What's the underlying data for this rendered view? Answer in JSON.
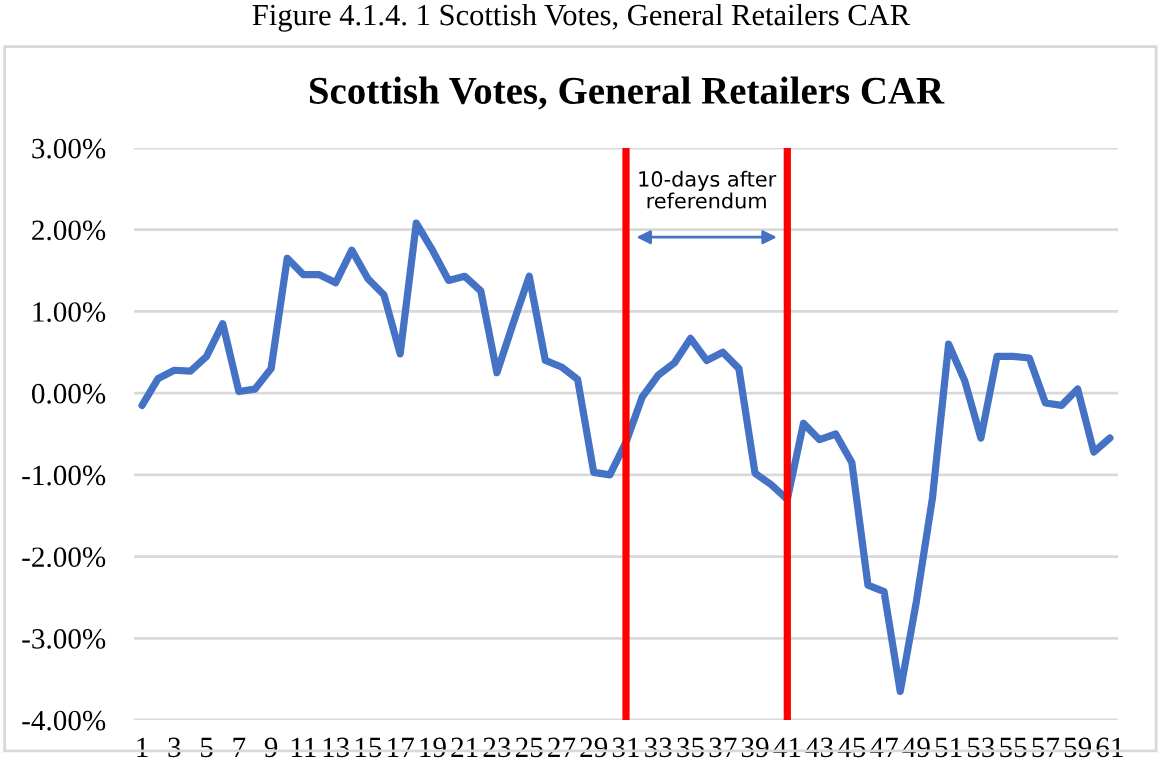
{
  "chart_data": {
    "type": "line",
    "title": "Scottish Votes, General Retailers CAR",
    "x": [
      1,
      2,
      3,
      4,
      5,
      6,
      7,
      8,
      9,
      10,
      11,
      12,
      13,
      14,
      15,
      16,
      17,
      18,
      19,
      20,
      21,
      22,
      23,
      24,
      25,
      26,
      27,
      28,
      29,
      30,
      31,
      32,
      33,
      34,
      35,
      36,
      37,
      38,
      39,
      40,
      41,
      42,
      43,
      44,
      45,
      46,
      47,
      48,
      49,
      50,
      51,
      52,
      53,
      54,
      55,
      56,
      57,
      58,
      59,
      60,
      61
    ],
    "xlim": [
      0.5,
      61.5
    ],
    "xticks": [
      1,
      3,
      5,
      7,
      9,
      11,
      13,
      15,
      17,
      19,
      21,
      23,
      25,
      27,
      29,
      31,
      33,
      35,
      37,
      39,
      41,
      43,
      45,
      47,
      49,
      51,
      53,
      55,
      57,
      59,
      61
    ],
    "series": [
      {
        "color": "#4472c4",
        "values": [
          -0.15,
          0.18,
          0.28,
          0.27,
          0.45,
          0.85,
          0.02,
          0.05,
          0.3,
          1.65,
          1.45,
          1.45,
          1.35,
          1.75,
          1.4,
          1.2,
          0.48,
          2.08,
          1.75,
          1.38,
          1.43,
          1.25,
          0.25,
          0.85,
          1.43,
          0.4,
          0.32,
          0.17,
          -0.97,
          -1.0,
          -0.6,
          -0.05,
          0.22,
          0.37,
          0.67,
          0.4,
          0.5,
          0.3,
          -0.98,
          -1.12,
          -1.3,
          -0.37,
          -0.57,
          -0.5,
          -0.85,
          -2.35,
          -2.43,
          -3.65,
          -2.55,
          -1.28,
          0.6,
          0.15,
          -0.55,
          0.45,
          0.45,
          0.43,
          -0.12,
          -0.15,
          0.05,
          -0.72,
          -0.55
        ]
      }
    ],
    "ylim": [
      -4,
      3
    ],
    "yticks": [
      {
        "value": -4,
        "label": "-4.00%"
      },
      {
        "value": -3,
        "label": "-3.00%"
      },
      {
        "value": -2,
        "label": "-2.00%"
      },
      {
        "value": -1,
        "label": "-1.00%"
      },
      {
        "value": 0,
        "label": "0.00%"
      },
      {
        "value": 1,
        "label": "1.00%"
      },
      {
        "value": 2,
        "label": "2.00%"
      },
      {
        "value": 3,
        "label": "3.00%"
      }
    ],
    "grid": "y",
    "legend": false,
    "marker": "none",
    "line_style": "solid",
    "ref_lines": [
      {
        "axis": "x",
        "value": 31,
        "color": "#ff0000"
      },
      {
        "axis": "x",
        "value": 41,
        "color": "#ff0000"
      }
    ],
    "annotations": [
      "10-days after\nreferendum",
      "Figure 4.1.4. 1 Scottish Votes, General Retailers CAR"
    ]
  }
}
